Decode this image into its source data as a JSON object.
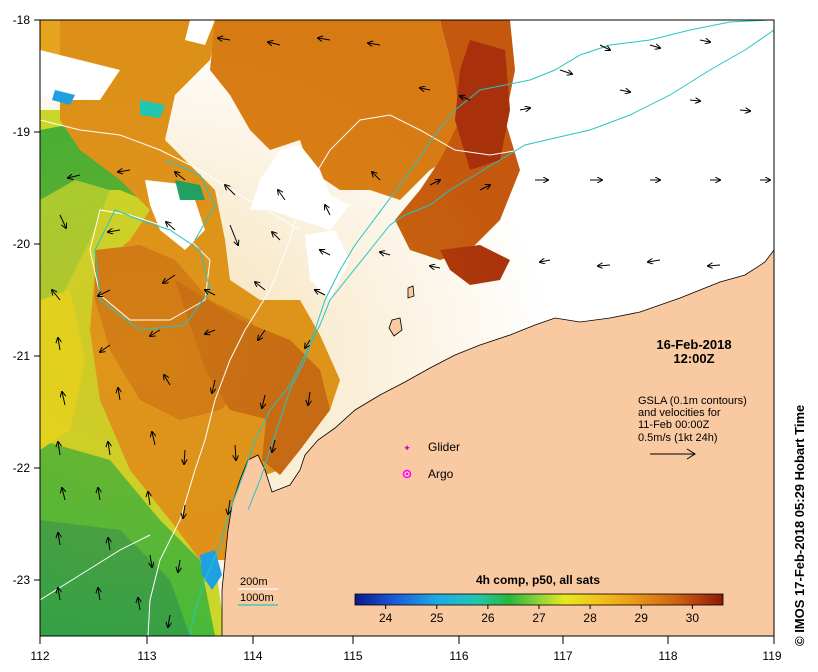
{
  "map": {
    "longitude_ticks": [
      "112",
      "113",
      "114",
      "115",
      "116",
      "117",
      "118",
      "119"
    ],
    "latitude_ticks": [
      "-18",
      "-19",
      "-20",
      "-21",
      "-22",
      "-23"
    ],
    "date_line": "16-Feb-2018",
    "time_line": "12:00Z",
    "gsla_note": [
      "GSLA (0.1m contours)",
      "and velocities for",
      "11-Feb 00:00Z",
      "0.5m/s (1kt 24h)"
    ],
    "legend": {
      "glider": "Glider",
      "argo": "Argo"
    },
    "isobaths": {
      "shallow": "200m",
      "deep": "1000m"
    },
    "colorbar": {
      "title": "4h comp, p50, all sats",
      "ticks": [
        "24",
        "25",
        "26",
        "27",
        "28",
        "29",
        "30"
      ],
      "range": [
        23.4,
        30.6
      ]
    },
    "credit": "© IMOS 17-Feb-2018 05:29 Hobart Time",
    "colors": {
      "land": "#f9c9a1",
      "isobath_200": "#ffffff",
      "isobath_1000": "#22c6c6",
      "glider_marker": "#cc00cc",
      "argo_marker": "#ff00ff"
    }
  }
}
